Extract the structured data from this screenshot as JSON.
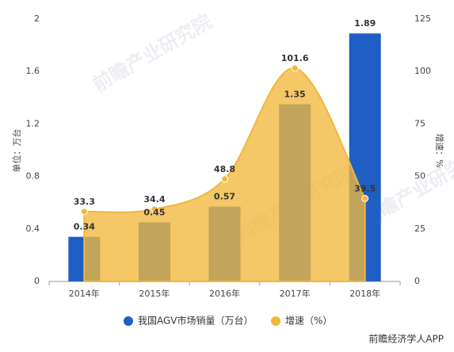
{
  "chart_data": {
    "type": "combo",
    "categories": [
      "2014年",
      "2015年",
      "2016年",
      "2017年",
      "2018年"
    ],
    "series": [
      {
        "name": "我国AGV市场销量（万台）",
        "type": "bar",
        "color": "#1f5fc4",
        "values": [
          0.34,
          0.45,
          0.57,
          1.35,
          1.89
        ]
      },
      {
        "name": "增速（%）",
        "type": "area",
        "axis": "y2",
        "color": "#f1b73c",
        "values": [
          33.3,
          34.4,
          48.8,
          101.6,
          39.5
        ]
      }
    ],
    "ylabel": "单位：万台",
    "y2label": "增速：%",
    "ylim": [
      0,
      2
    ],
    "yticks": [
      0,
      0.4,
      0.8,
      1.2,
      1.6,
      2
    ],
    "y2lim": [
      0,
      125
    ],
    "y2ticks": [
      0,
      25,
      50,
      75,
      100,
      125
    ],
    "grid": false,
    "watermark": "前瞻产业研究院",
    "source": "前瞻经济学人APP"
  }
}
